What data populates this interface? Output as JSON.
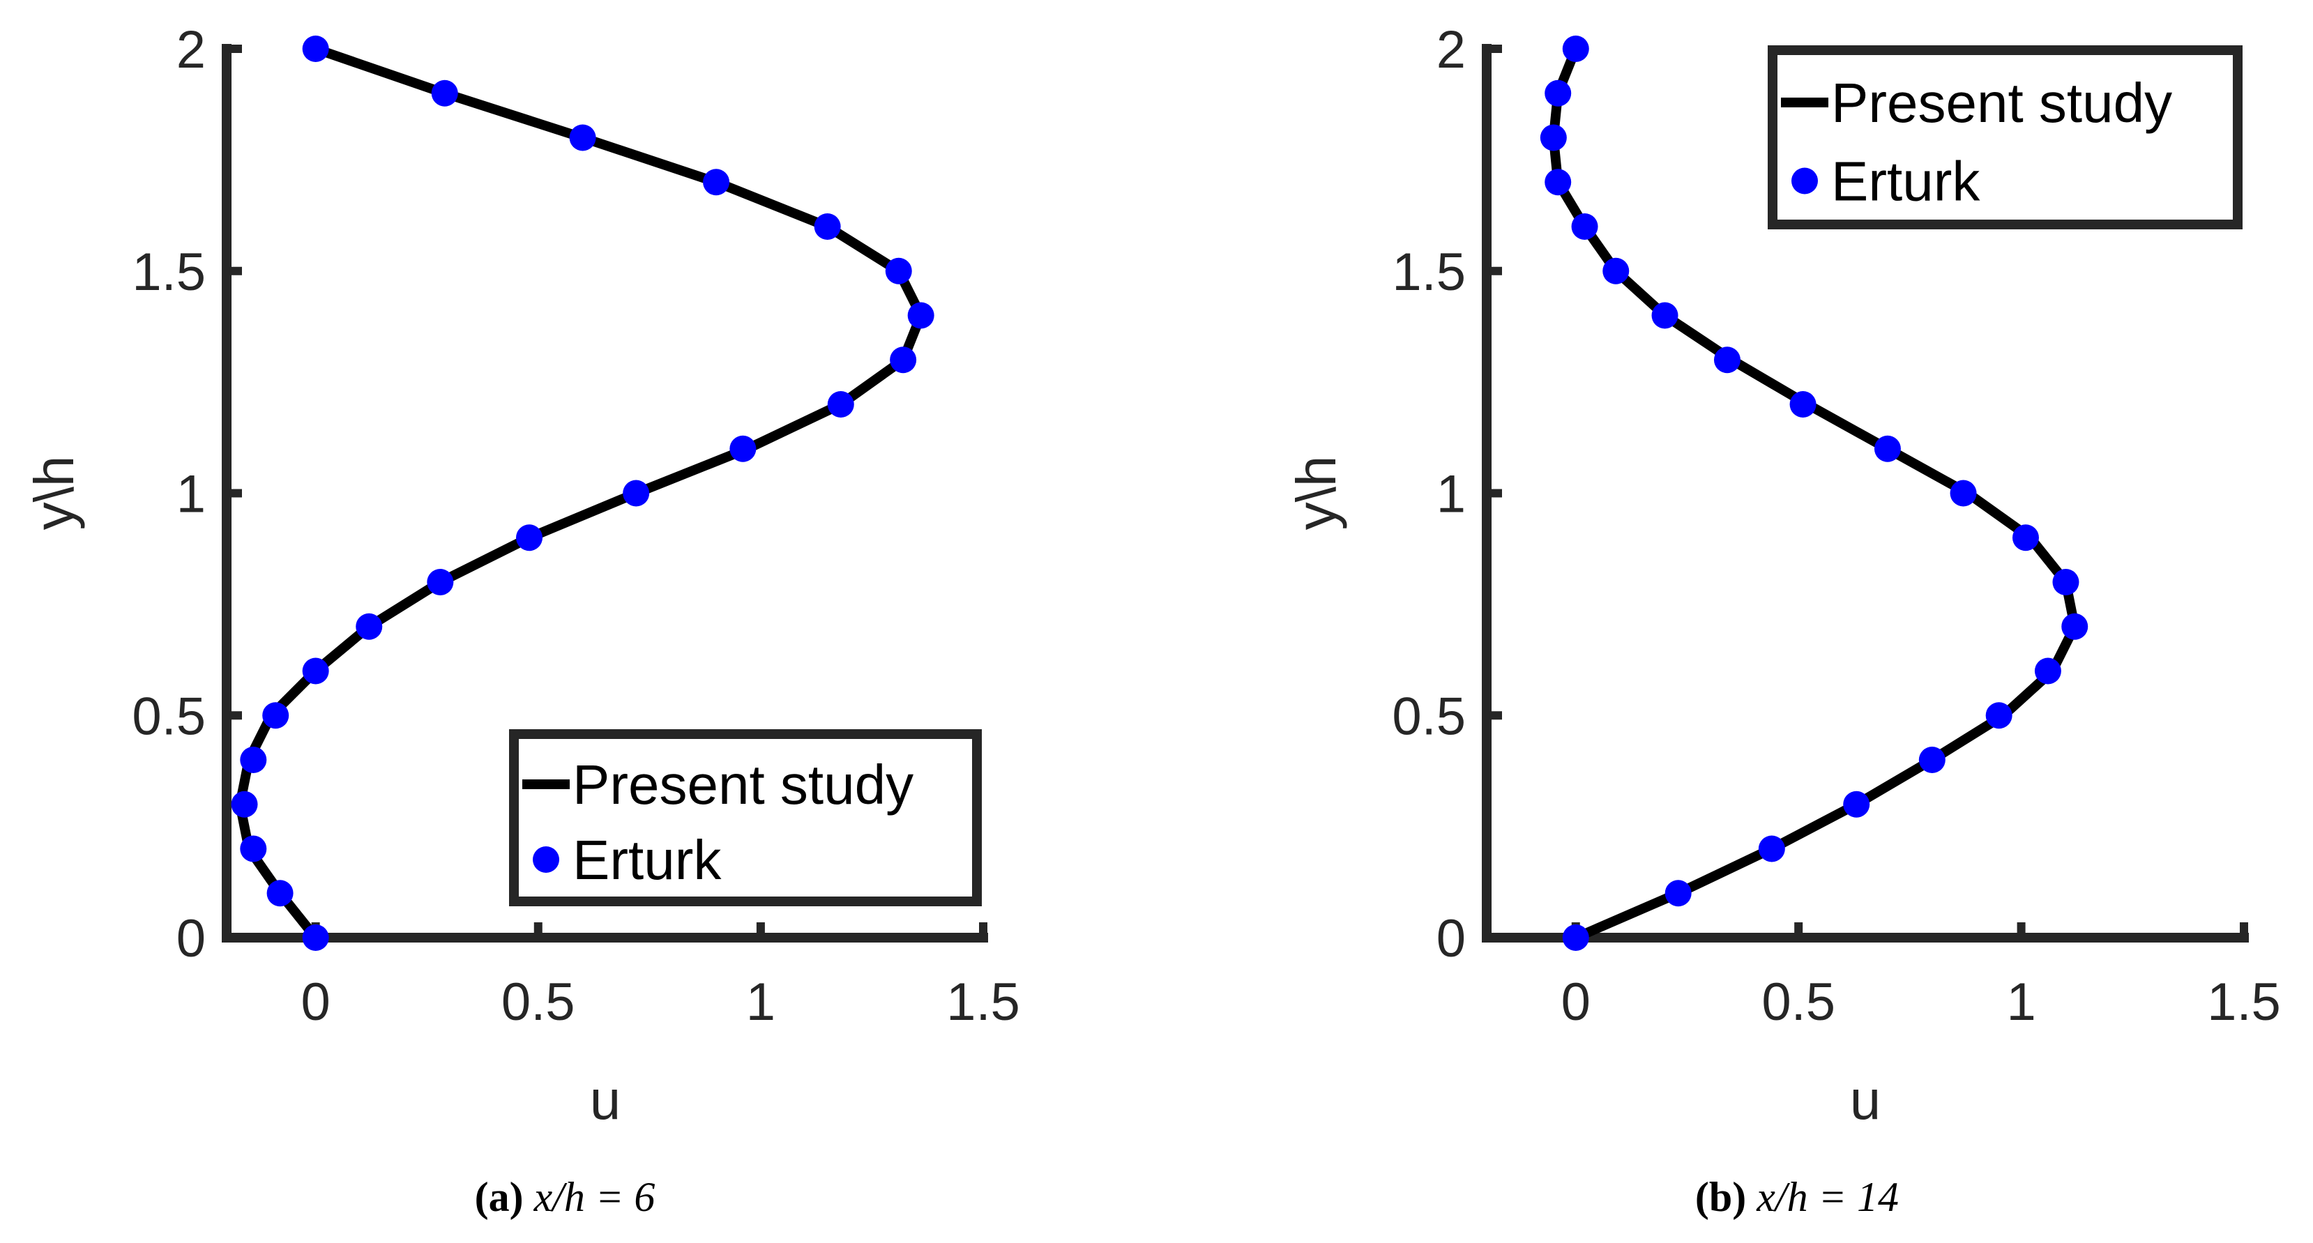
{
  "colors": {
    "line": "#000000",
    "marker": "#0000ff",
    "axis": "#262626"
  },
  "chart_data": [
    {
      "type": "line",
      "panel": "a",
      "xlabel": "u",
      "ylabel": "y\\h",
      "xlim": [
        -0.2,
        1.5
      ],
      "ylim": [
        0,
        2
      ],
      "xticks": [
        0,
        0.5,
        1,
        1.5
      ],
      "xtick_labels": [
        "0",
        "0.5",
        "1",
        "1.5"
      ],
      "yticks": [
        0,
        0.5,
        1,
        1.5,
        2
      ],
      "ytick_labels": [
        "0",
        "0.5",
        "1",
        "1.5",
        "2"
      ],
      "legend": {
        "placement": "bottom-right",
        "entries": [
          "Present study",
          "Erturk"
        ]
      },
      "caption": {
        "label": "(a)",
        "text": "x/h = 6"
      },
      "series": [
        {
          "name": "Present study",
          "style": "line",
          "color": "#000000",
          "x": [
            0,
            -0.08,
            -0.15,
            -0.17,
            -0.15,
            -0.1,
            0,
            0.12,
            0.28,
            0.48,
            0.72,
            0.97,
            1.18,
            1.32,
            1.36,
            1.31,
            1.15,
            0.9,
            0.6,
            0.29,
            0
          ],
          "y": [
            0,
            0.1,
            0.2,
            0.3,
            0.4,
            0.5,
            0.6,
            0.7,
            0.8,
            0.9,
            1.0,
            1.1,
            1.2,
            1.3,
            1.4,
            1.5,
            1.6,
            1.7,
            1.8,
            1.9,
            2.0
          ]
        },
        {
          "name": "Erturk",
          "style": "markers",
          "color": "#0000ff",
          "x": [
            0,
            -0.08,
            -0.14,
            -0.16,
            -0.14,
            -0.09,
            0,
            0.12,
            0.28,
            0.48,
            0.72,
            0.96,
            1.18,
            1.32,
            1.36,
            1.31,
            1.15,
            0.9,
            0.6,
            0.29,
            0
          ],
          "y": [
            0,
            0.1,
            0.2,
            0.3,
            0.4,
            0.5,
            0.6,
            0.7,
            0.8,
            0.9,
            1.0,
            1.1,
            1.2,
            1.3,
            1.4,
            1.5,
            1.6,
            1.7,
            1.8,
            1.9,
            2.0
          ]
        }
      ]
    },
    {
      "type": "line",
      "panel": "b",
      "xlabel": "u",
      "ylabel": "y\\h",
      "xlim": [
        -0.2,
        1.5
      ],
      "ylim": [
        0,
        2
      ],
      "xticks": [
        0,
        0.5,
        1,
        1.5
      ],
      "xtick_labels": [
        "0",
        "0.5",
        "1",
        "1.5"
      ],
      "yticks": [
        0,
        0.5,
        1,
        1.5,
        2
      ],
      "ytick_labels": [
        "0",
        "0.5",
        "1",
        "1.5",
        "2"
      ],
      "legend": {
        "placement": "top-right",
        "entries": [
          "Present study",
          "Erturk"
        ]
      },
      "caption": {
        "label": "(b)",
        "text": "x/h = 14"
      },
      "series": [
        {
          "name": "Present study",
          "style": "line",
          "color": "#000000",
          "x": [
            0,
            0.23,
            0.44,
            0.63,
            0.8,
            0.96,
            1.07,
            1.12,
            1.1,
            1.02,
            0.88,
            0.7,
            0.52,
            0.35,
            0.2,
            0.09,
            0.02,
            -0.04,
            -0.05,
            -0.04,
            0
          ],
          "y": [
            0,
            0.1,
            0.2,
            0.3,
            0.4,
            0.5,
            0.6,
            0.7,
            0.8,
            0.9,
            1.0,
            1.1,
            1.2,
            1.3,
            1.4,
            1.5,
            1.6,
            1.7,
            1.8,
            1.9,
            2.0
          ]
        },
        {
          "name": "Erturk",
          "style": "markers",
          "color": "#0000ff",
          "x": [
            0,
            0.23,
            0.44,
            0.63,
            0.8,
            0.95,
            1.06,
            1.12,
            1.1,
            1.01,
            0.87,
            0.7,
            0.51,
            0.34,
            0.2,
            0.09,
            0.02,
            -0.04,
            -0.05,
            -0.04,
            0
          ],
          "y": [
            0,
            0.1,
            0.2,
            0.3,
            0.4,
            0.5,
            0.6,
            0.7,
            0.8,
            0.9,
            1.0,
            1.1,
            1.2,
            1.3,
            1.4,
            1.5,
            1.6,
            1.7,
            1.8,
            1.9,
            2.0
          ]
        }
      ]
    }
  ]
}
